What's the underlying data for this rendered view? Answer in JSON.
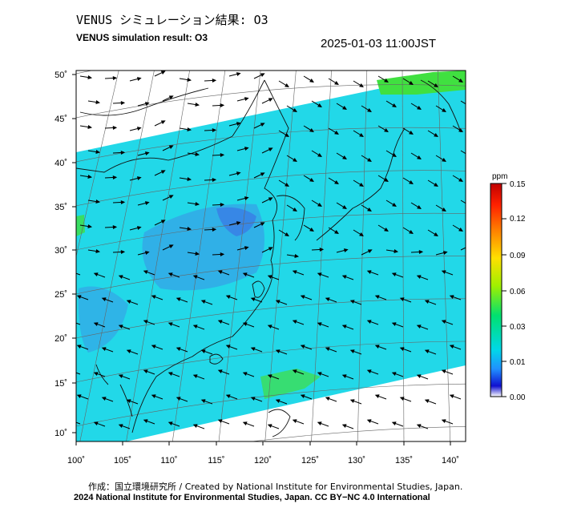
{
  "header": {
    "title_ja": "VENUS シミュレーション結果: O3",
    "title_en": "VENUS simulation result: O3",
    "timestamp": "2025-01-03 11:00JST"
  },
  "map": {
    "region": "East Asia",
    "lon_ticks": [
      "100˚",
      "105˚",
      "110˚",
      "115˚",
      "120˚",
      "125˚",
      "130˚",
      "135˚",
      "140˚"
    ],
    "lat_ticks": [
      "50˚",
      "45˚",
      "40˚",
      "35˚",
      "30˚",
      "25˚",
      "20˚",
      "15˚",
      "10˚"
    ],
    "field_colors": {
      "domain_fill": "#22d8e8",
      "low_patch": "#3c8fe6",
      "high_patch": "#40e040"
    }
  },
  "colorbar": {
    "unit": "ppm",
    "tick_labels": [
      "0.15",
      "0.12",
      "0.09",
      "0.06",
      "0.03",
      "0.01",
      "0.00"
    ],
    "colors": [
      "#ffffff",
      "#1010d0",
      "#2090ff",
      "#00d8e8",
      "#00e070",
      "#a0f000",
      "#ffe000",
      "#ff8000",
      "#ff2000",
      "#c00000"
    ]
  },
  "footer": {
    "credit_line1": "作成：国立環境研究所 / Created by National Institute for Environmental Studies, Japan.",
    "credit_line2": "2024 National Institute for Environmental Studies, Japan. CC BY−NC 4.0 International"
  }
}
